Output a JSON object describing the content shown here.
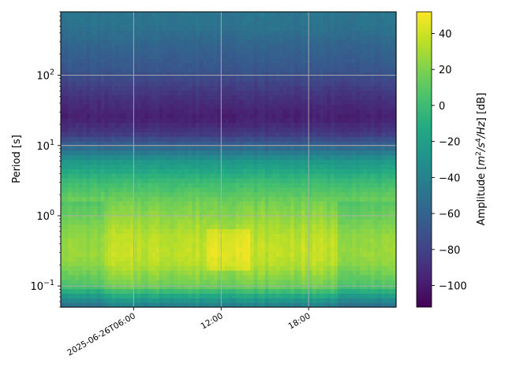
{
  "chart_data": {
    "type": "heatmap",
    "title": "",
    "xlabel": "",
    "ylabel": "Period [s]",
    "y_scale": "log",
    "y_range_s": [
      0.05,
      800
    ],
    "x_range_hours": [
      1.0,
      24.0
    ],
    "x_ticks": [
      {
        "hour": 6,
        "label": "2025-06-26T06:00"
      },
      {
        "hour": 12,
        "label": "12:00"
      },
      {
        "hour": 18,
        "label": "18:00"
      }
    ],
    "y_ticks": [
      {
        "value": 0.1,
        "base": "10",
        "exp": "−1"
      },
      {
        "value": 1,
        "base": "10",
        "exp": "0"
      },
      {
        "value": 10,
        "base": "10",
        "exp": "1"
      },
      {
        "value": 100,
        "base": "10",
        "exp": "2"
      }
    ],
    "grid": true,
    "colormap": "viridis",
    "colorbar": {
      "label_prefix": "Amplitude [",
      "label_unit_base": "m",
      "label_unit_exp1": "2",
      "label_unit_mid": "/s",
      "label_unit_exp2": "4",
      "label_unit_end": "/Hz",
      "label_suffix": "] [dB]",
      "range": [
        -112,
        52
      ],
      "ticks": [
        40,
        20,
        0,
        -20,
        -40,
        -60,
        -80,
        -100
      ],
      "tick_labels": [
        "40",
        "20",
        "0",
        "−20",
        "−40",
        "−60",
        "−80",
        "−100"
      ]
    },
    "profile_period_s": [
      0.05,
      0.06,
      0.08,
      0.1,
      0.15,
      0.2,
      0.3,
      0.5,
      0.8,
      1.5,
      3,
      6,
      10,
      15,
      25,
      40,
      70,
      120,
      250,
      500,
      800
    ],
    "profile_amplitude_db": [
      -45,
      -30,
      -5,
      15,
      25,
      33,
      37,
      35,
      28,
      18,
      0,
      -25,
      -60,
      -85,
      -98,
      -92,
      -82,
      -68,
      -60,
      -50,
      -48
    ],
    "peak_amplitude_db": 48,
    "quiet_time_hours": [
      [
        1,
        4
      ],
      [
        20,
        24
      ]
    ],
    "busy_time_hours": [
      [
        11,
        14
      ]
    ]
  }
}
